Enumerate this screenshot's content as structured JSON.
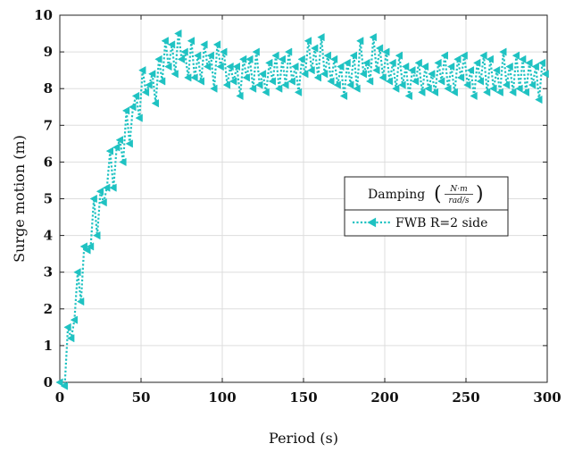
{
  "chart_data": {
    "type": "line",
    "title": "",
    "xlabel": "Period (s)",
    "ylabel": "Surge motion (m)",
    "xlim": [
      0,
      300
    ],
    "ylim": [
      0,
      10
    ],
    "xticks": [
      0,
      50,
      100,
      150,
      200,
      250,
      300
    ],
    "yticks": [
      0,
      1,
      2,
      3,
      4,
      5,
      6,
      7,
      8,
      9,
      10
    ],
    "grid": true,
    "legend_position": "right",
    "legend": {
      "title": "Damping",
      "fraction_numerator": "N·m",
      "fraction_denominator": "rad/s",
      "entries": [
        "FWB R=2 side"
      ]
    },
    "series": [
      {
        "name": "FWB R=2 side",
        "color": "#1fc2c2",
        "marker": "triangle-left",
        "line_style": "dotted",
        "x": [
          0,
          3,
          5,
          7,
          9,
          11,
          13,
          15,
          17,
          19,
          21,
          23,
          25,
          27,
          29,
          31,
          33,
          35,
          37,
          39,
          41,
          43,
          45,
          47,
          49,
          51,
          53,
          55,
          57,
          59,
          61,
          63,
          65,
          67,
          69,
          71,
          73,
          75,
          77,
          79,
          81,
          83,
          85,
          87,
          89,
          91,
          93,
          95,
          97,
          99,
          101,
          103,
          105,
          107,
          109,
          111,
          113,
          115,
          117,
          119,
          121,
          123,
          125,
          127,
          129,
          131,
          133,
          135,
          137,
          139,
          141,
          143,
          145,
          147,
          149,
          151,
          153,
          155,
          157,
          159,
          161,
          163,
          165,
          167,
          169,
          171,
          173,
          175,
          177,
          179,
          181,
          183,
          185,
          187,
          189,
          191,
          193,
          195,
          197,
          199,
          201,
          203,
          205,
          207,
          209,
          211,
          213,
          215,
          217,
          219,
          221,
          223,
          225,
          227,
          229,
          231,
          233,
          235,
          237,
          239,
          241,
          243,
          245,
          247,
          249,
          251,
          253,
          255,
          257,
          259,
          261,
          263,
          265,
          267,
          269,
          271,
          273,
          275,
          277,
          279,
          281,
          283,
          285,
          287,
          289,
          291,
          293,
          295,
          297,
          299
        ],
        "y": [
          0.0,
          -0.1,
          1.5,
          1.2,
          1.7,
          3.0,
          2.2,
          3.7,
          3.6,
          3.7,
          5.0,
          4.0,
          5.2,
          4.9,
          5.3,
          6.3,
          5.3,
          6.4,
          6.6,
          6.0,
          7.4,
          6.5,
          7.5,
          7.8,
          7.2,
          8.5,
          7.9,
          8.1,
          8.4,
          7.6,
          8.8,
          8.2,
          9.3,
          8.6,
          9.2,
          8.4,
          9.5,
          8.8,
          9.0,
          8.3,
          9.3,
          8.3,
          8.9,
          8.2,
          9.2,
          8.6,
          8.9,
          8.0,
          9.2,
          8.6,
          9.0,
          8.1,
          8.6,
          8.2,
          8.6,
          7.8,
          8.8,
          8.3,
          8.8,
          8.0,
          9.0,
          8.1,
          8.4,
          7.9,
          8.7,
          8.2,
          8.9,
          8.0,
          8.8,
          8.1,
          9.0,
          8.2,
          8.6,
          7.9,
          8.8,
          8.4,
          9.3,
          8.5,
          9.1,
          8.3,
          9.4,
          8.4,
          8.9,
          8.2,
          8.8,
          8.1,
          8.6,
          7.8,
          8.7,
          8.1,
          8.9,
          8.0,
          9.3,
          8.4,
          8.7,
          8.2,
          9.4,
          8.5,
          9.1,
          8.3,
          9.0,
          8.2,
          8.7,
          8.0,
          8.9,
          8.1,
          8.6,
          7.8,
          8.5,
          8.2,
          8.7,
          7.9,
          8.6,
          8.0,
          8.4,
          7.9,
          8.7,
          8.2,
          8.9,
          8.0,
          8.6,
          7.9,
          8.8,
          8.3,
          8.9,
          8.1,
          8.5,
          7.8,
          8.7,
          8.2,
          8.9,
          7.9,
          8.8,
          8.0,
          8.5,
          7.9,
          9.0,
          8.1,
          8.6,
          7.9,
          8.9,
          8.0,
          8.8,
          7.9,
          8.7,
          8.1,
          8.6,
          7.7,
          8.7,
          8.4
        ]
      }
    ]
  }
}
